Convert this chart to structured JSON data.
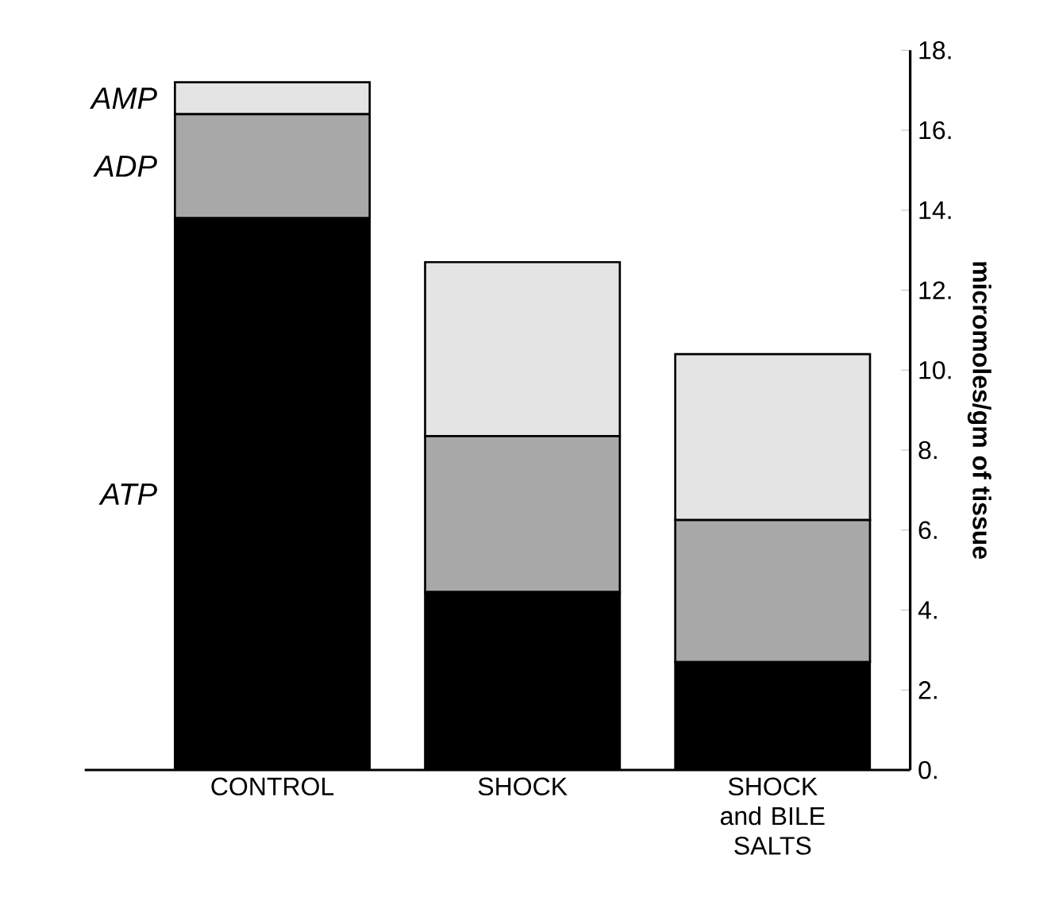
{
  "chart_data": {
    "type": "bar",
    "stacked": true,
    "ylabel": "micromoles/gm of tissue",
    "categories": [
      "CONTROL",
      "SHOCK",
      "SHOCK and BILE SALTS"
    ],
    "series": [
      {
        "name": "ATP",
        "color": "#000000",
        "values": [
          13.8,
          4.45,
          2.7
        ]
      },
      {
        "name": "ADP",
        "color": "#a8a8a8",
        "values": [
          2.6,
          3.9,
          3.55
        ]
      },
      {
        "name": "AMP",
        "color": "#e4e4e4",
        "values": [
          0.8,
          4.35,
          4.15
        ]
      }
    ],
    "ylim": [
      0,
      18
    ],
    "yticks": [
      {
        "value": 0,
        "label": "0."
      },
      {
        "value": 2,
        "label": "2."
      },
      {
        "value": 4,
        "label": "4."
      },
      {
        "value": 6,
        "label": "6."
      },
      {
        "value": 8,
        "label": "8."
      },
      {
        "value": 10,
        "label": "10."
      },
      {
        "value": 12,
        "label": "12."
      },
      {
        "value": 14,
        "label": "14."
      },
      {
        "value": 16,
        "label": "16."
      },
      {
        "value": 18,
        "label": "18."
      }
    ],
    "grid": false,
    "legend": "left"
  }
}
